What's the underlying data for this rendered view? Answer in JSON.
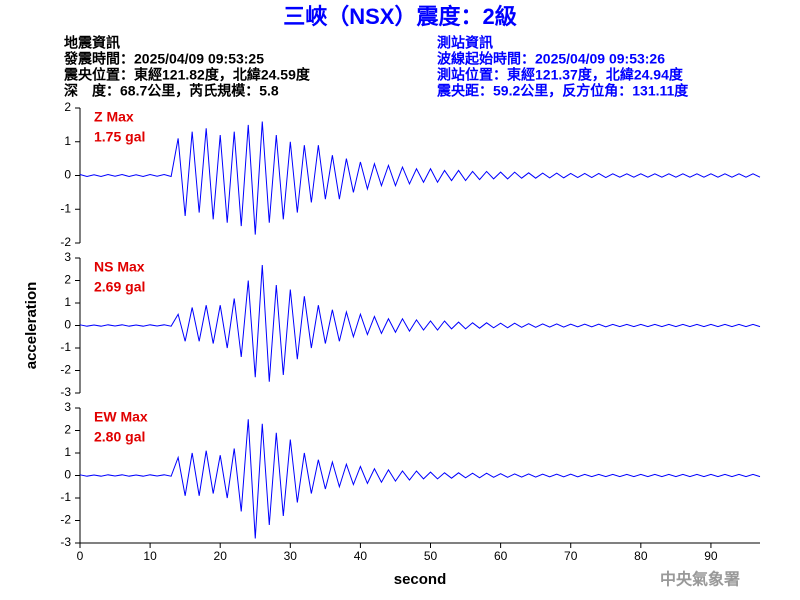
{
  "header": {
    "title": "三峽（NSX）震度：2級",
    "left": [
      "地震資訊",
      "發震時間：2025/04/09 09:53:25",
      "震央位置：東經121.82度，北緯24.59度",
      "深　度：68.7公里，芮氏規模：5.8"
    ],
    "right": [
      "測站資訊",
      "波線起始時間：2025/04/09 09:53:26",
      "測站位置：東經121.37度，北緯24.94度",
      "震央距：59.2公里，反方位角：131.11度"
    ]
  },
  "footer": "中央氣象署",
  "chart_data": [
    {
      "type": "line",
      "color": "#0000ff",
      "annotations": [
        "Z Max",
        "1.75 gal"
      ],
      "xlim": [
        0,
        97
      ],
      "ylim": [
        -2,
        2
      ],
      "yticks": [
        -2,
        -1,
        0,
        1,
        2
      ],
      "x": [
        0,
        1,
        2,
        3,
        4,
        5,
        6,
        7,
        8,
        9,
        10,
        11,
        12,
        13,
        14,
        15,
        16,
        17,
        18,
        19,
        20,
        21,
        22,
        23,
        24,
        25,
        26,
        27,
        28,
        29,
        30,
        31,
        32,
        33,
        34,
        35,
        36,
        37,
        38,
        39,
        40,
        41,
        42,
        43,
        44,
        45,
        46,
        47,
        48,
        49,
        50,
        51,
        52,
        53,
        54,
        55,
        56,
        57,
        58,
        59,
        60,
        61,
        62,
        63,
        64,
        65,
        66,
        67,
        68,
        69,
        70,
        71,
        72,
        73,
        74,
        75,
        76,
        77,
        78,
        79,
        80,
        81,
        82,
        83,
        84,
        85,
        86,
        87,
        88,
        89,
        90,
        91,
        92,
        93,
        94,
        95,
        96,
        97
      ],
      "values": [
        0.03,
        -0.03,
        0.02,
        -0.03,
        0.03,
        -0.02,
        0.03,
        -0.03,
        0.02,
        -0.03,
        0.03,
        -0.02,
        0.03,
        -0.03,
        1.1,
        -1.2,
        1.3,
        -1.1,
        1.4,
        -1.3,
        1.2,
        -1.4,
        1.3,
        -1.5,
        1.5,
        -1.75,
        1.6,
        -1.4,
        1.2,
        -1.3,
        1.0,
        -1.1,
        0.9,
        -0.8,
        0.9,
        -0.7,
        0.6,
        -0.7,
        0.5,
        -0.5,
        0.4,
        -0.4,
        0.35,
        -0.3,
        0.3,
        -0.3,
        0.25,
        -0.25,
        0.2,
        -0.2,
        0.2,
        -0.2,
        0.15,
        -0.15,
        0.15,
        -0.15,
        0.12,
        -0.12,
        0.12,
        -0.1,
        0.1,
        -0.1,
        0.1,
        -0.08,
        0.08,
        -0.08,
        0.07,
        -0.07,
        0.07,
        -0.07,
        0.06,
        -0.06,
        0.06,
        -0.06,
        0.06,
        -0.06,
        0.05,
        -0.05,
        0.05,
        -0.05,
        0.05,
        -0.05,
        0.05,
        -0.05,
        0.05,
        -0.05,
        0.05,
        -0.05,
        0.05,
        -0.05,
        0.05,
        -0.05,
        0.05,
        -0.05,
        0.05,
        -0.05,
        0.05,
        -0.05
      ]
    },
    {
      "type": "line",
      "color": "#0000ff",
      "annotations": [
        "NS Max",
        "2.69 gal"
      ],
      "ylabel": "acceleration",
      "xlim": [
        0,
        97
      ],
      "ylim": [
        -3,
        3
      ],
      "yticks": [
        -3,
        -2,
        -1,
        0,
        1,
        2,
        3
      ],
      "x": [
        0,
        1,
        2,
        3,
        4,
        5,
        6,
        7,
        8,
        9,
        10,
        11,
        12,
        13,
        14,
        15,
        16,
        17,
        18,
        19,
        20,
        21,
        22,
        23,
        24,
        25,
        26,
        27,
        28,
        29,
        30,
        31,
        32,
        33,
        34,
        35,
        36,
        37,
        38,
        39,
        40,
        41,
        42,
        43,
        44,
        45,
        46,
        47,
        48,
        49,
        50,
        51,
        52,
        53,
        54,
        55,
        56,
        57,
        58,
        59,
        60,
        61,
        62,
        63,
        64,
        65,
        66,
        67,
        68,
        69,
        70,
        71,
        72,
        73,
        74,
        75,
        76,
        77,
        78,
        79,
        80,
        81,
        82,
        83,
        84,
        85,
        86,
        87,
        88,
        89,
        90,
        91,
        92,
        93,
        94,
        95,
        96,
        97
      ],
      "values": [
        0.03,
        -0.03,
        0.02,
        -0.03,
        0.03,
        -0.02,
        0.03,
        -0.03,
        0.02,
        -0.03,
        0.03,
        -0.02,
        0.03,
        -0.03,
        0.5,
        -0.7,
        0.8,
        -0.7,
        0.9,
        -0.8,
        0.9,
        -1.0,
        1.2,
        -1.4,
        2.0,
        -2.3,
        2.69,
        -2.5,
        1.8,
        -2.2,
        1.6,
        -1.5,
        1.3,
        -1.0,
        0.9,
        -0.8,
        0.7,
        -0.7,
        0.6,
        -0.5,
        0.5,
        -0.4,
        0.4,
        -0.35,
        0.3,
        -0.3,
        0.3,
        -0.25,
        0.25,
        -0.2,
        0.2,
        -0.2,
        0.2,
        -0.15,
        0.15,
        -0.15,
        0.12,
        -0.12,
        0.12,
        -0.1,
        0.1,
        -0.1,
        0.1,
        -0.08,
        0.08,
        -0.08,
        0.07,
        -0.07,
        0.07,
        -0.07,
        0.06,
        -0.06,
        0.06,
        -0.06,
        0.06,
        -0.06,
        0.05,
        -0.05,
        0.05,
        -0.05,
        0.05,
        -0.05,
        0.05,
        -0.05,
        0.05,
        -0.05,
        0.05,
        -0.05,
        0.05,
        -0.05,
        0.05,
        -0.05,
        0.05,
        -0.05,
        0.05,
        -0.05,
        0.05,
        -0.05
      ]
    },
    {
      "type": "line",
      "color": "#0000ff",
      "annotations": [
        "EW Max",
        "2.80 gal"
      ],
      "xlabel": "second",
      "xlim": [
        0,
        97
      ],
      "ylim": [
        -3,
        3
      ],
      "yticks": [
        -3,
        -2,
        -1,
        0,
        1,
        2,
        3
      ],
      "xticks": [
        0,
        10,
        20,
        30,
        40,
        50,
        60,
        70,
        80,
        90
      ],
      "x": [
        0,
        1,
        2,
        3,
        4,
        5,
        6,
        7,
        8,
        9,
        10,
        11,
        12,
        13,
        14,
        15,
        16,
        17,
        18,
        19,
        20,
        21,
        22,
        23,
        24,
        25,
        26,
        27,
        28,
        29,
        30,
        31,
        32,
        33,
        34,
        35,
        36,
        37,
        38,
        39,
        40,
        41,
        42,
        43,
        44,
        45,
        46,
        47,
        48,
        49,
        50,
        51,
        52,
        53,
        54,
        55,
        56,
        57,
        58,
        59,
        60,
        61,
        62,
        63,
        64,
        65,
        66,
        67,
        68,
        69,
        70,
        71,
        72,
        73,
        74,
        75,
        76,
        77,
        78,
        79,
        80,
        81,
        82,
        83,
        84,
        85,
        86,
        87,
        88,
        89,
        90,
        91,
        92,
        93,
        94,
        95,
        96,
        97
      ],
      "values": [
        0.03,
        -0.03,
        0.02,
        -0.03,
        0.03,
        -0.02,
        0.03,
        -0.03,
        0.02,
        -0.03,
        0.03,
        -0.02,
        0.03,
        -0.03,
        0.8,
        -0.9,
        1.0,
        -0.9,
        1.1,
        -0.8,
        0.9,
        -1.0,
        1.2,
        -1.6,
        2.5,
        -2.8,
        2.3,
        -2.2,
        1.9,
        -1.8,
        1.6,
        -1.2,
        1.0,
        -0.8,
        0.7,
        -0.6,
        0.6,
        -0.5,
        0.5,
        -0.4,
        0.4,
        -0.35,
        0.3,
        -0.3,
        0.25,
        -0.25,
        0.2,
        -0.2,
        0.2,
        -0.15,
        0.15,
        -0.15,
        0.12,
        -0.12,
        0.12,
        -0.1,
        0.1,
        -0.1,
        0.1,
        -0.08,
        0.08,
        -0.08,
        0.07,
        -0.07,
        0.07,
        -0.07,
        0.06,
        -0.06,
        0.06,
        -0.06,
        0.06,
        -0.06,
        0.05,
        -0.05,
        0.05,
        -0.05,
        0.05,
        -0.05,
        0.05,
        -0.05,
        0.05,
        -0.05,
        0.05,
        -0.05,
        0.05,
        -0.05,
        0.05,
        -0.05,
        0.05,
        -0.05,
        0.05,
        -0.05,
        0.05,
        -0.05,
        0.05,
        -0.05,
        0.05,
        -0.05
      ]
    }
  ]
}
